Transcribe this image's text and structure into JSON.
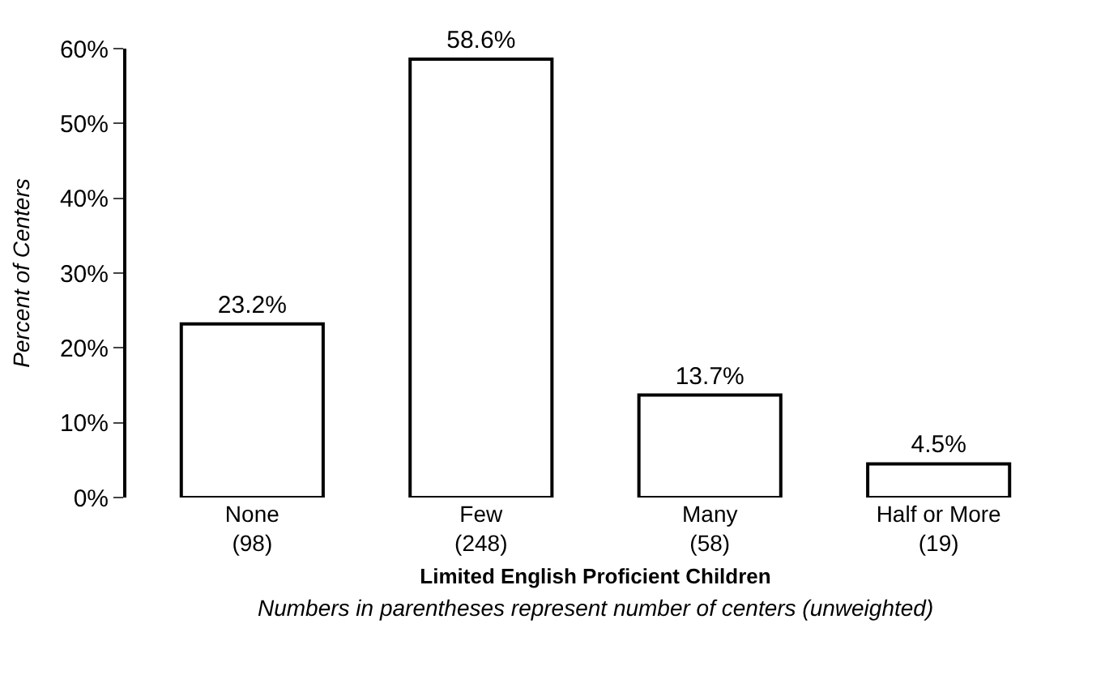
{
  "chart_data": {
    "type": "bar",
    "categories": [
      "None\n(98)",
      "Few\n(248)",
      "Many\n(58)",
      "Half or More\n(19)"
    ],
    "values": [
      23.2,
      58.6,
      13.7,
      4.5
    ],
    "value_labels": [
      "23.2%",
      "58.6%",
      "13.7%",
      "4.5%"
    ],
    "color": "#ffffff",
    "ylabel": "Percent of Centers",
    "xlabel": "Limited English Proficient Children",
    "annotations": [
      "Numbers in parentheses represent number of centers (unweighted)"
    ],
    "ylim": [
      0,
      60
    ],
    "yticks": [
      {
        "value": 0,
        "label": "0%"
      },
      {
        "value": 10,
        "label": "10%"
      },
      {
        "value": 20,
        "label": "20%"
      },
      {
        "value": 30,
        "label": "30%"
      },
      {
        "value": 40,
        "label": "40%"
      },
      {
        "value": 50,
        "label": "50%"
      },
      {
        "value": 60,
        "label": "60%"
      }
    ],
    "legend": false
  }
}
